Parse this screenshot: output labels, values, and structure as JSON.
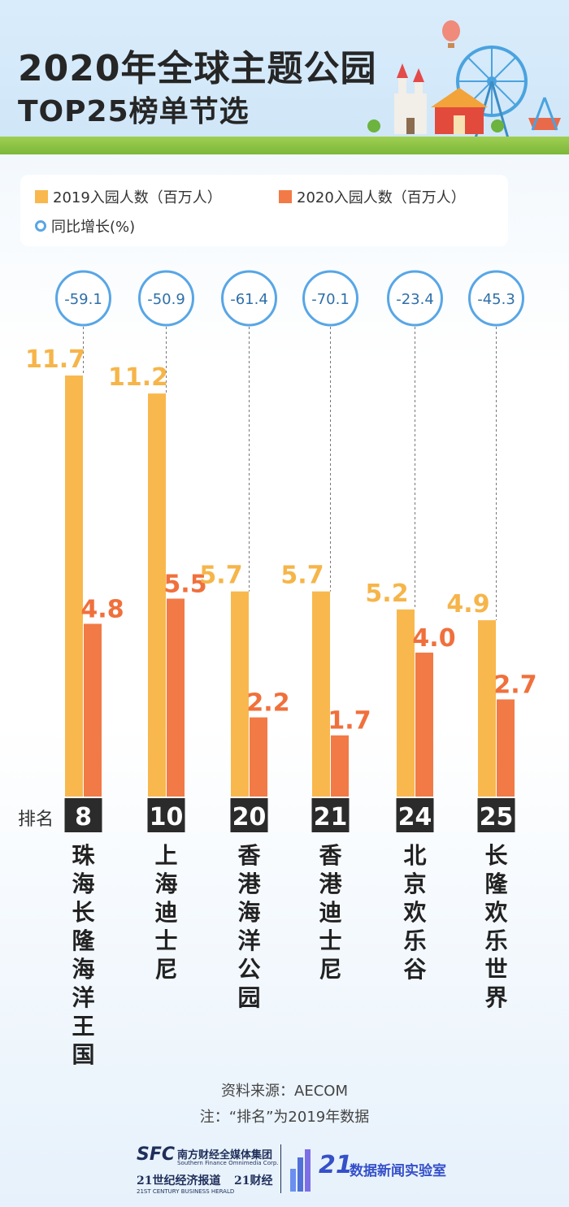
{
  "title": {
    "line1": "2020年全球主题公园",
    "line2": "TOP25榜单节选"
  },
  "legend": {
    "s2019": "2019入园人数（百万人）",
    "s2020": "2020入园人数（百万人）",
    "growth": "同比增长(%)"
  },
  "rank_label": "排名",
  "colors": {
    "bar_2019": "#f9b84d",
    "bar_2020": "#f27a46",
    "circle": "#58a6e6",
    "label_2019": "#f6b54a",
    "label_2020": "#f0703c",
    "rank_bg": "#2b2b2b"
  },
  "chart_data": {
    "type": "bar",
    "title": "2020年全球主题公园 TOP25榜单节选",
    "xlabel": "",
    "ylabel": "",
    "categories": [
      "珠海长隆海洋王国",
      "上海迪士尼",
      "香港海洋公园",
      "香港迪士尼",
      "北京欢乐谷",
      "长隆欢乐世界"
    ],
    "ranks": [
      "8",
      "10",
      "20",
      "21",
      "24",
      "25"
    ],
    "series": [
      {
        "name": "2019入园人数（百万人）",
        "values": [
          11.7,
          11.2,
          5.7,
          5.7,
          5.2,
          4.9
        ]
      },
      {
        "name": "2020入园人数（百万人）",
        "values": [
          4.8,
          5.5,
          2.2,
          1.7,
          4.0,
          2.7
        ]
      }
    ],
    "growth": {
      "name": "同比增长(%)",
      "values": [
        -59.1,
        -50.9,
        -61.4,
        -70.1,
        -23.4,
        -45.3
      ]
    },
    "value_labels_2019": [
      "11.7",
      "11.2",
      "5.7",
      "5.7",
      "5.2",
      "4.9"
    ],
    "value_labels_2020": [
      "4.8",
      "5.5",
      "2.2",
      "1.7",
      "4.0",
      "2.7"
    ],
    "growth_labels": [
      "-59.1",
      "-50.9",
      "-61.4",
      "-70.1",
      "-23.4",
      "-45.3"
    ],
    "ylim": [
      0,
      12
    ],
    "grid": false,
    "legend_position": "top"
  },
  "source": {
    "line1": "资料来源：AECOM",
    "line2": "注：“排名”为2019年数据"
  },
  "footer": {
    "sfc": "SFC",
    "group": "南方财经全媒体集团",
    "group_en": "Southern Finance Omnimedia Corp.",
    "herald": "21世纪经济报道",
    "herald_en": "21ST CENTURY BUSINESS HERALD",
    "caijing": "21财经",
    "lab_num": "21",
    "lab": "数据新闻实验室"
  }
}
